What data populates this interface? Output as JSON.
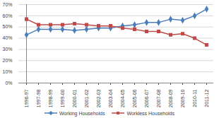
{
  "chart_data": {
    "type": "line",
    "categories": [
      "1996-97",
      "1997-98",
      "1998-99",
      "1999-00",
      "2000-01",
      "2001-02",
      "2002-03",
      "2003-04",
      "2004-05",
      "2005-06",
      "2006-07",
      "2007-08",
      "2008-09",
      "2009-10",
      "2010-11",
      "2011-12"
    ],
    "series": [
      {
        "name": "Working Households",
        "color": "#4a7ebb",
        "marker": "diamond",
        "values": [
          43,
          48,
          48,
          48,
          47,
          48,
          49,
          49,
          51,
          52,
          54,
          54,
          57,
          56,
          60,
          66
        ]
      },
      {
        "name": "Workless Households",
        "color": "#be4b48",
        "marker": "square",
        "values": [
          57,
          52,
          52,
          52,
          53,
          52,
          51,
          51,
          49,
          48,
          46,
          46,
          43,
          44,
          40,
          34
        ]
      }
    ],
    "ylim": [
      0,
      70
    ],
    "yticks": [
      {
        "value": 0,
        "label": "0%"
      },
      {
        "value": 10,
        "label": "10%"
      },
      {
        "value": 20,
        "label": "20%"
      },
      {
        "value": 30,
        "label": "30%"
      },
      {
        "value": 40,
        "label": "40%"
      },
      {
        "value": 50,
        "label": "50%"
      },
      {
        "value": 60,
        "label": "60%"
      },
      {
        "value": 70,
        "label": "70%"
      }
    ],
    "grid": true,
    "legend": "bottom"
  }
}
